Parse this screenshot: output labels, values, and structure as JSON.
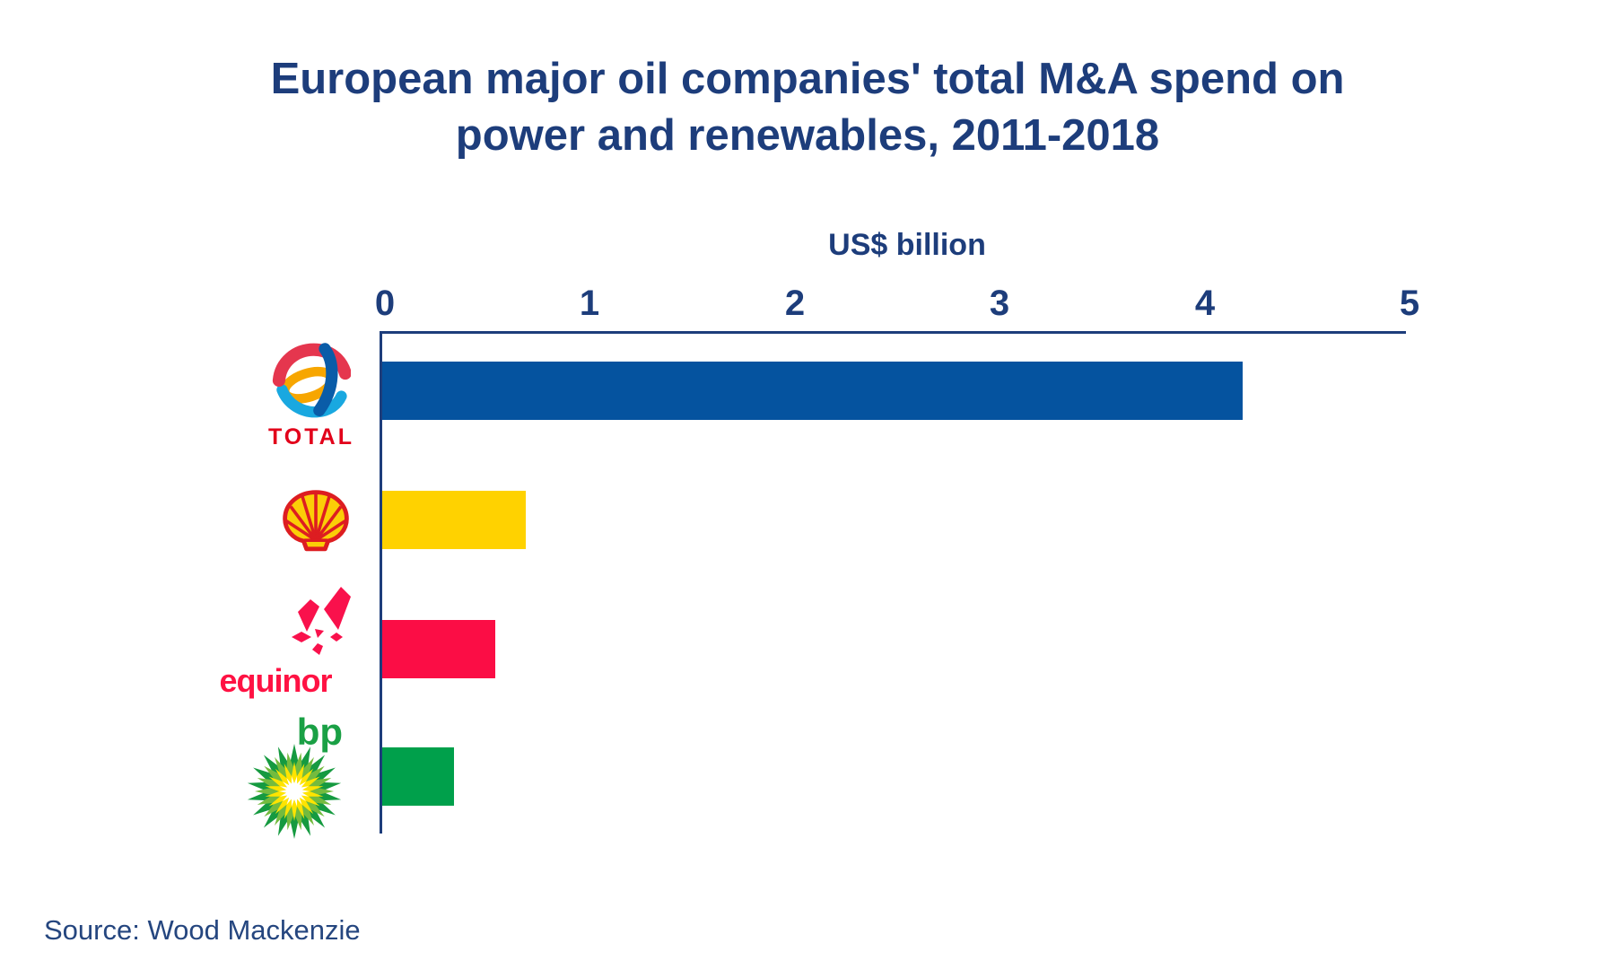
{
  "chart_data": {
    "type": "bar",
    "orientation": "horizontal",
    "title": "European major oil companies' total M&A spend on power and renewables, 2011-2018",
    "title_lines": [
      "European major oil companies' total M&A spend on",
      "power and renewables, 2011-2018"
    ],
    "axis_title": "US$ billion",
    "xlabel": "US$ billion",
    "ylabel": "",
    "categories": [
      "Total",
      "Shell",
      "Equinor",
      "bp"
    ],
    "values": [
      4.2,
      0.7,
      0.55,
      0.35
    ],
    "bar_colors": [
      "#05539f",
      "#ffd200",
      "#fb0d45",
      "#00a04b"
    ],
    "xlim": [
      0,
      5
    ],
    "xticks": [
      0,
      1,
      2,
      3,
      4,
      5
    ],
    "grid": "off",
    "legend_position": "none",
    "source": "Source: Wood Mackenzie"
  },
  "text_color": "#1d3d7b",
  "logos": {
    "total": {
      "wordmark": "TOTAL",
      "colors": {
        "red": "#e5364e",
        "orange": "#f7a600",
        "dark_blue": "#0a5ca8",
        "light_blue": "#19a8e0",
        "text": "#e2001a"
      }
    },
    "shell": {
      "name": "Shell",
      "colors": {
        "red": "#dd1d21",
        "yellow": "#fbce07"
      }
    },
    "equinor": {
      "wordmark": "equinor",
      "colors": {
        "magenta": "#f9114c"
      }
    },
    "bp": {
      "wordmark": "bp",
      "colors": {
        "green": "#159a40",
        "light_green": "#74bb3e",
        "yellow": "#ffe400",
        "text": "#1aa045"
      }
    }
  }
}
